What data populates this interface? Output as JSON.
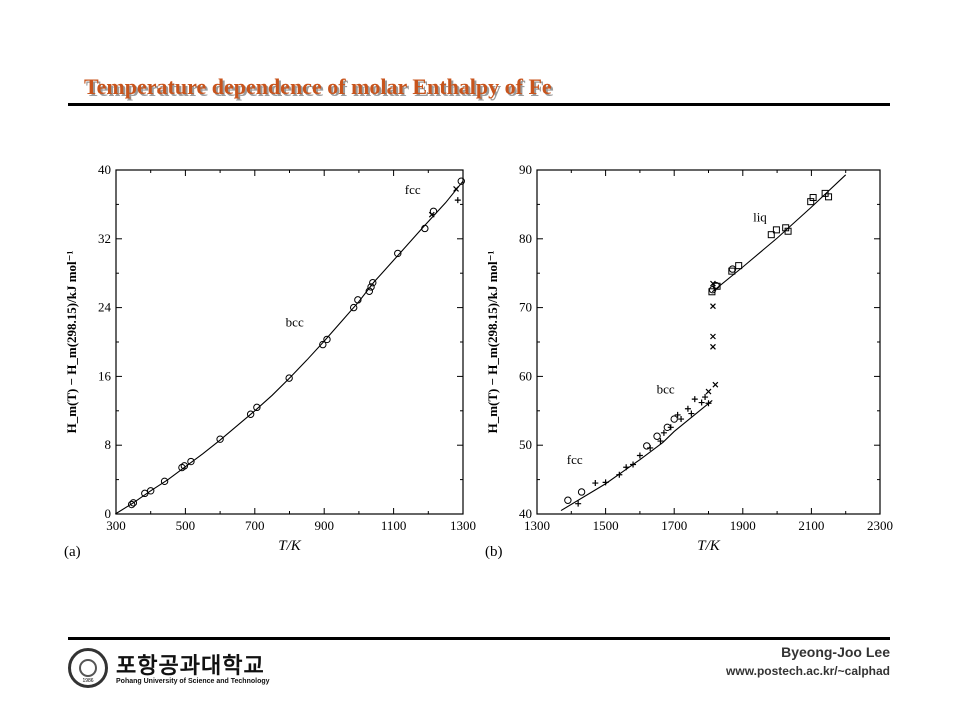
{
  "slide": {
    "title": "Temperature dependence of molar Enthalpy of Fe",
    "author": "Byeong-Joo Lee",
    "url": "www.postech.ac.kr/~calphad",
    "logo_korean": "포항공과대학교",
    "logo_english": "Pohang University of Science and Technology",
    "logo_year": "1986",
    "title_color": "#c8541c"
  },
  "chart_data": [
    {
      "type": "scatter",
      "panel_label": "(a)",
      "xlabel": "T/K",
      "ylabel": "H_m(T) − H_m(298.15)/kJ mol⁻¹",
      "xlim": [
        300,
        1300
      ],
      "ylim": [
        0,
        40
      ],
      "x_ticks": [
        "300",
        "500",
        "700",
        "900",
        "1100",
        "1300"
      ],
      "y_ticks": [
        "0",
        "8",
        "16",
        "24",
        "32",
        "40"
      ],
      "grid": false,
      "annotations": [
        {
          "text": "fcc",
          "x": 1155,
          "y": 37.2
        },
        {
          "text": "bcc",
          "x": 815,
          "y": 21.8
        }
      ],
      "series": [
        {
          "marker": "line",
          "x": [
            298,
            350,
            400,
            450,
            500,
            550,
            600,
            650,
            700,
            750,
            800,
            850,
            900,
            950,
            1000,
            1042,
            1100,
            1184,
            1250,
            1300
          ],
          "y": [
            0,
            1.3,
            2.7,
            4.0,
            5.5,
            7.0,
            8.6,
            10.3,
            12.0,
            13.8,
            15.8,
            17.9,
            20.1,
            22.4,
            24.7,
            26.9,
            29.5,
            33.3,
            36.2,
            38.7
          ]
        },
        {
          "marker": "circle",
          "x": [
            345,
            350,
            383,
            400,
            440,
            490,
            497,
            516,
            600,
            688,
            706,
            799,
            896,
            908,
            985,
            997,
            1030,
            1035,
            1040,
            1112,
            1190,
            1215,
            1295
          ],
          "y": [
            1.1,
            1.3,
            2.4,
            2.7,
            3.8,
            5.4,
            5.6,
            6.1,
            8.7,
            11.6,
            12.4,
            15.8,
            19.7,
            20.3,
            24.0,
            24.9,
            25.9,
            26.4,
            26.9,
            30.3,
            33.2,
            35.2,
            38.7
          ]
        },
        {
          "marker": "x",
          "x": [
            1210,
            1280
          ],
          "y": [
            34.8,
            37.8
          ]
        },
        {
          "marker": "plus",
          "x": [
            1285
          ],
          "y": [
            36.5
          ]
        }
      ]
    },
    {
      "type": "scatter",
      "panel_label": "(b)",
      "xlabel": "T/K",
      "ylabel": "H_m(T) − H_m(298.15)/kJ mol⁻¹",
      "xlim": [
        1300,
        2300
      ],
      "ylim": [
        40,
        90
      ],
      "x_ticks": [
        "1300",
        "1500",
        "1700",
        "1900",
        "2100",
        "2300"
      ],
      "y_ticks": [
        "40",
        "50",
        "60",
        "70",
        "80",
        "90"
      ],
      "grid": false,
      "annotations": [
        {
          "text": "liq",
          "x": 1950,
          "y": 82.5
        },
        {
          "text": "bcc",
          "x": 1675,
          "y": 57.5
        },
        {
          "text": "fcc",
          "x": 1410,
          "y": 47.3
        }
      ],
      "series": [
        {
          "marker": "line",
          "x": [
            1370,
            1500,
            1600,
            1667,
            1700,
            1811
          ],
          "y": [
            40.5,
            44.4,
            47.9,
            50.4,
            52.0,
            56.5
          ]
        },
        {
          "marker": "line",
          "x": [
            1811,
            1900,
            2000,
            2100,
            2200
          ],
          "y": [
            72.3,
            75.9,
            80.1,
            84.6,
            89.3
          ]
        },
        {
          "marker": "circle",
          "x": [
            1390,
            1430,
            1620,
            1650,
            1680,
            1700,
            1812,
            1822,
            1870
          ],
          "y": [
            42.0,
            43.2,
            49.9,
            51.3,
            52.6,
            53.8,
            72.6,
            73.2,
            75.6
          ]
        },
        {
          "marker": "square",
          "x": [
            1810,
            1825,
            1868,
            1888,
            1983,
            1998,
            2025,
            2032,
            2098,
            2105,
            2140,
            2150
          ],
          "y": [
            72.3,
            73.1,
            75.3,
            76.1,
            80.6,
            81.3,
            81.6,
            81.1,
            85.4,
            86.0,
            86.6,
            86.1
          ]
        },
        {
          "marker": "x",
          "x": [
            1813,
            1813,
            1813,
            1813,
            1820,
            1800
          ],
          "y": [
            70.2,
            65.8,
            64.3,
            73.5,
            58.8,
            57.8
          ]
        },
        {
          "marker": "plus",
          "x": [
            1420,
            1470,
            1500,
            1540,
            1560,
            1580,
            1600,
            1630,
            1660,
            1670,
            1690,
            1710,
            1720,
            1740,
            1750,
            1760,
            1780,
            1790,
            1800
          ],
          "y": [
            41.5,
            44.5,
            44.6,
            45.7,
            46.8,
            47.2,
            48.5,
            49.6,
            50.6,
            51.8,
            52.6,
            54.4,
            53.8,
            55.3,
            54.6,
            56.7,
            56.2,
            57.0,
            56.1
          ]
        }
      ]
    }
  ]
}
